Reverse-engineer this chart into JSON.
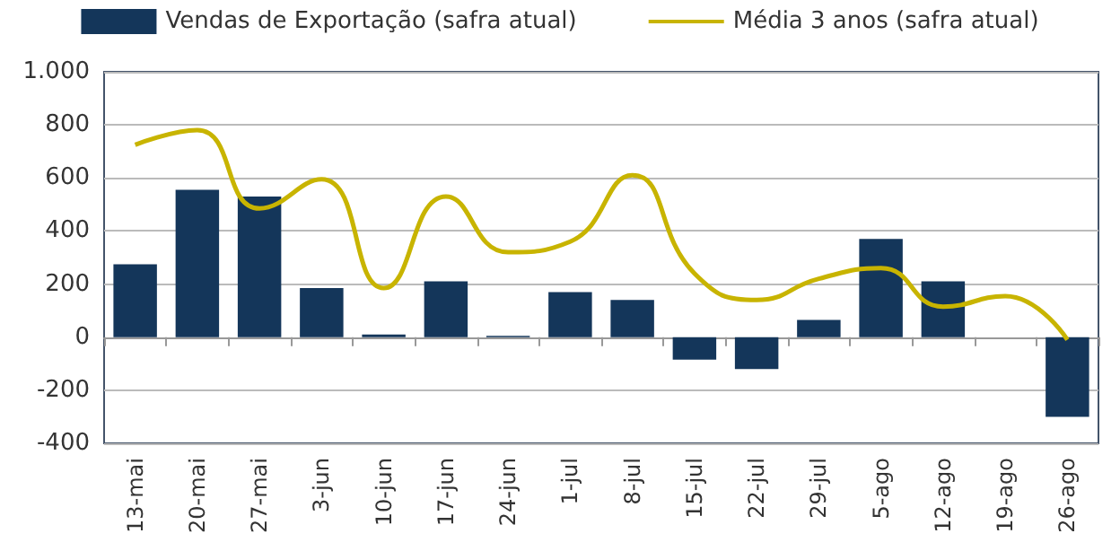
{
  "chart_data": {
    "type": "bar",
    "categories": [
      "13-mai",
      "20-mai",
      "27-mai",
      "3-jun",
      "10-jun",
      "17-jun",
      "24-jun",
      "1-jul",
      "8-jul",
      "15-jul",
      "22-jul",
      "29-jul",
      "5-ago",
      "12-ago",
      "19-ago",
      "26-ago"
    ],
    "series": [
      {
        "name": "Vendas de Exportação (safra atual)",
        "color": "#14365a",
        "values": [
          275,
          555,
          530,
          185,
          10,
          210,
          5,
          170,
          140,
          -85,
          -120,
          65,
          370,
          210,
          null,
          -300
        ]
      },
      {
        "name": "Média 3 anos (safra atual)",
        "color": "#c8b400",
        "type": "line",
        "values": [
          725,
          780,
          485,
          595,
          185,
          530,
          320,
          360,
          610,
          240,
          140,
          220,
          260,
          115,
          155,
          -10
        ]
      }
    ],
    "ylim": [
      -400,
      1000
    ],
    "yticks": [
      {
        "value": -400,
        "label": "-400"
      },
      {
        "value": -200,
        "label": "-200"
      },
      {
        "value": 0,
        "label": "0"
      },
      {
        "value": 200,
        "label": "200"
      },
      {
        "value": 400,
        "label": "400"
      },
      {
        "value": 600,
        "label": "600"
      },
      {
        "value": 800,
        "label": "800"
      },
      {
        "value": 1000,
        "label": "1.000"
      }
    ],
    "grid": "y",
    "legend": "top",
    "marker": "none"
  }
}
